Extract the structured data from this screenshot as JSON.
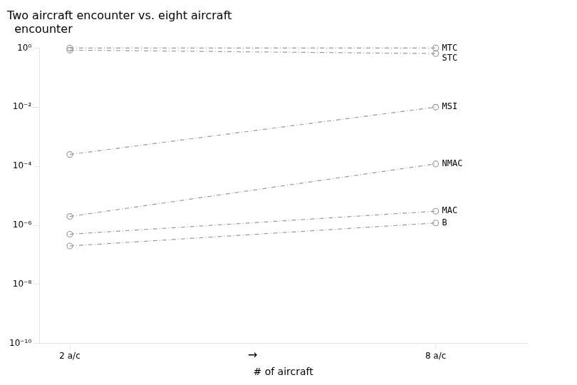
{
  "chart_data": {
    "type": "line",
    "title": [
      "Two aircraft encounter vs. eight aircraft",
      "  encounter"
    ],
    "x_label": "# of aircraft",
    "annotations": [
      "→"
    ],
    "x": [
      2,
      8
    ],
    "xlim": [
      1.5,
      9.5
    ],
    "xticks": [
      {
        "value": 2,
        "label": "2 a/c"
      },
      {
        "value": 8,
        "label": "8 a/c"
      }
    ],
    "ylim": [
      1e-10,
      1
    ],
    "yticks": [
      {
        "value": 1e-10,
        "label": "10⁻¹⁰"
      },
      {
        "value": 1e-08,
        "label": "10⁻⁸"
      },
      {
        "value": 1e-06,
        "label": "10⁻⁶"
      },
      {
        "value": 0.0001,
        "label": "10⁻⁴"
      },
      {
        "value": 0.01,
        "label": "10⁻²"
      },
      {
        "value": 1,
        "label": "10⁰"
      }
    ],
    "log": "y",
    "grid": false,
    "color": "#999999",
    "marker": "circle",
    "line_style": "dashdot",
    "series": [
      {
        "name": "MTC",
        "values": [
          1.0,
          1.0
        ]
      },
      {
        "name": "STC",
        "values": [
          0.85,
          0.65
        ]
      },
      {
        "name": "MSI",
        "values": [
          0.00025,
          0.01
        ]
      },
      {
        "name": "NMAC",
        "values": [
          2e-06,
          0.00012
        ]
      },
      {
        "name": "MAC",
        "values": [
          5e-07,
          3e-06
        ]
      },
      {
        "name": "B",
        "values": [
          2e-07,
          1.2e-06
        ]
      }
    ]
  }
}
